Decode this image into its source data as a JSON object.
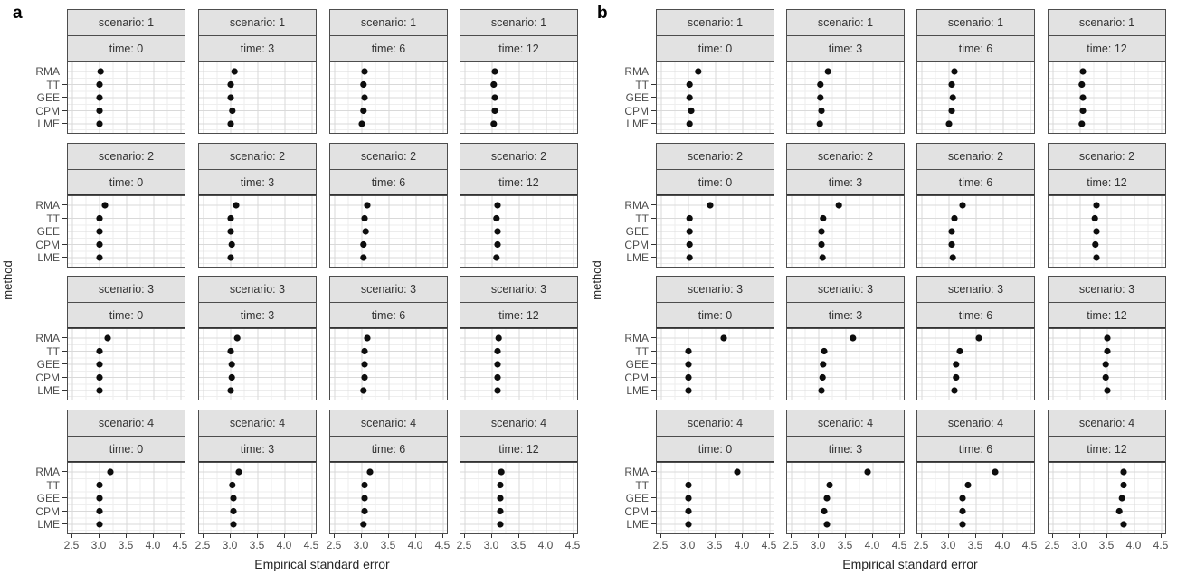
{
  "figure_title": "",
  "strip_prefixes": {
    "scenario": "scenario: ",
    "time": "time: "
  },
  "colors": {
    "point": "#0d0d0d",
    "strip_bg": "#e2e2e2",
    "panel_border": "#4d4d4d",
    "grid_major": "#d9d9d9",
    "grid_minor": "#eeeeee",
    "axis_text": "#4d4d4d",
    "title_text": "#262626"
  },
  "chart_data": [
    {
      "type": "scatter",
      "panel_label": "a",
      "xlabel": "Empirical standard error",
      "ylabel": "method",
      "facet_rows": "scenario",
      "facet_cols": "time",
      "scenarios": [
        "1",
        "2",
        "3",
        "4"
      ],
      "times": [
        "0",
        "3",
        "6",
        "12"
      ],
      "methods": [
        "RMA",
        "TT",
        "GEE",
        "CPM",
        "LME"
      ],
      "x_ticks": [
        "2.5",
        "3.0",
        "3.5",
        "4.0",
        "4.5"
      ],
      "xlim": [
        2.4,
        4.6
      ],
      "grid": true,
      "legend": "none",
      "values": [
        [
          [
            3.02,
            3.0,
            3.0,
            3.0,
            3.0
          ],
          [
            3.07,
            3.0,
            3.0,
            3.03,
            3.0
          ],
          [
            3.05,
            3.03,
            3.05,
            3.03,
            3.0
          ],
          [
            3.05,
            3.03,
            3.05,
            3.05,
            3.03
          ]
        ],
        [
          [
            3.1,
            3.0,
            3.0,
            3.0,
            3.0
          ],
          [
            3.1,
            3.0,
            3.0,
            3.02,
            3.0
          ],
          [
            3.1,
            3.05,
            3.07,
            3.03,
            3.03
          ],
          [
            3.1,
            3.08,
            3.1,
            3.1,
            3.08
          ]
        ],
        [
          [
            3.15,
            3.0,
            3.0,
            3.0,
            3.0
          ],
          [
            3.12,
            3.0,
            3.02,
            3.02,
            3.0
          ],
          [
            3.1,
            3.05,
            3.05,
            3.05,
            3.03
          ],
          [
            3.12,
            3.1,
            3.1,
            3.1,
            3.1
          ]
        ],
        [
          [
            3.2,
            3.0,
            3.0,
            3.0,
            3.0
          ],
          [
            3.15,
            3.03,
            3.05,
            3.05,
            3.05
          ],
          [
            3.15,
            3.05,
            3.05,
            3.05,
            3.03
          ],
          [
            3.17,
            3.15,
            3.15,
            3.15,
            3.15
          ]
        ]
      ]
    },
    {
      "type": "scatter",
      "panel_label": "b",
      "xlabel": "Empirical standard error",
      "ylabel": "method",
      "facet_rows": "scenario",
      "facet_cols": "time",
      "scenarios": [
        "1",
        "2",
        "3",
        "4"
      ],
      "times": [
        "0",
        "3",
        "6",
        "12"
      ],
      "methods": [
        "RMA",
        "TT",
        "GEE",
        "CPM",
        "LME"
      ],
      "x_ticks": [
        "2.5",
        "3.0",
        "3.5",
        "4.0",
        "4.5"
      ],
      "xlim": [
        2.4,
        4.6
      ],
      "grid": true,
      "legend": "none",
      "values": [
        [
          [
            3.18,
            3.02,
            3.02,
            3.05,
            3.02
          ],
          [
            3.17,
            3.03,
            3.03,
            3.05,
            3.02
          ],
          [
            3.1,
            3.05,
            3.07,
            3.05,
            3.0
          ],
          [
            3.05,
            3.03,
            3.05,
            3.05,
            3.03
          ]
        ],
        [
          [
            3.4,
            3.02,
            3.02,
            3.02,
            3.02
          ],
          [
            3.37,
            3.08,
            3.05,
            3.05,
            3.07
          ],
          [
            3.25,
            3.1,
            3.05,
            3.05,
            3.07
          ],
          [
            3.3,
            3.27,
            3.3,
            3.28,
            3.3
          ]
        ],
        [
          [
            3.65,
            3.0,
            3.0,
            3.0,
            3.0
          ],
          [
            3.63,
            3.1,
            3.08,
            3.07,
            3.05
          ],
          [
            3.55,
            3.2,
            3.13,
            3.13,
            3.1
          ],
          [
            3.5,
            3.5,
            3.47,
            3.47,
            3.5
          ]
        ],
        [
          [
            3.9,
            3.0,
            3.0,
            3.0,
            3.0
          ],
          [
            3.9,
            3.2,
            3.15,
            3.1,
            3.15
          ],
          [
            3.85,
            3.35,
            3.25,
            3.25,
            3.25
          ],
          [
            3.8,
            3.8,
            3.77,
            3.72,
            3.8
          ]
        ]
      ]
    }
  ]
}
